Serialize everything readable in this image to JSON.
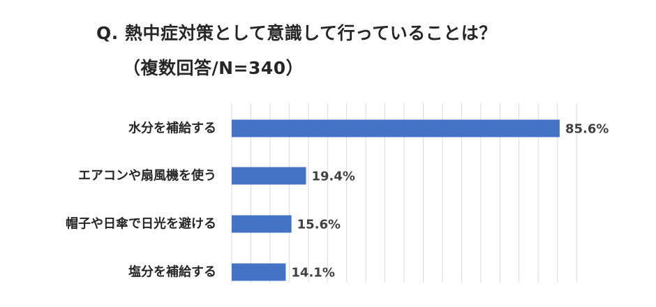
{
  "chart_data": {
    "type": "bar",
    "orientation": "horizontal",
    "title": [
      "Q. 熱中症対策として意識して行っていることは？",
      "（複数回答/N=340）"
    ],
    "categories": [
      "水分を補給する",
      "エアコンや扇風機を使う",
      "帽子や日傘で日光を避ける",
      "塩分を補給する"
    ],
    "values": [
      85.6,
      19.4,
      15.6,
      14.1
    ],
    "value_labels": [
      "85.6%",
      "19.4%",
      "15.6%",
      "14.1%"
    ],
    "xlim": [
      0,
      90
    ],
    "grid": true,
    "legend": "none",
    "bar_color": "#4472C4"
  }
}
